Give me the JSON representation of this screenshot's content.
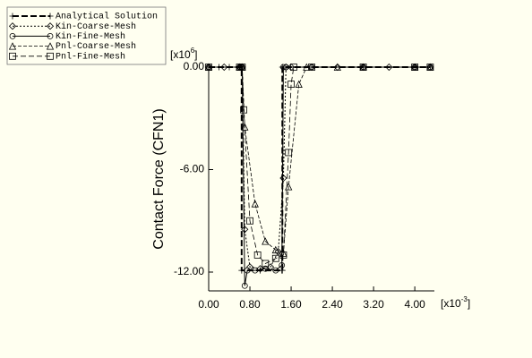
{
  "chart_data": {
    "type": "line",
    "y_label": "Contact Force (CFN1)",
    "y_multiplier": {
      "base": "[x10",
      "exponent": "6",
      "close": "]"
    },
    "x_multiplier": {
      "base": "[x10",
      "exponent": "-3",
      "close": "]"
    },
    "xlim": [
      0,
      4.38
    ],
    "ylim": [
      -13.1,
      0
    ],
    "xticks": [
      {
        "value": 0,
        "label": "0.00"
      },
      {
        "value": 0.8,
        "label": "0.80"
      },
      {
        "value": 1.6,
        "label": "1.60"
      },
      {
        "value": 2.4,
        "label": "2.40"
      },
      {
        "value": 3.2,
        "label": "3.20"
      },
      {
        "value": 4.0,
        "label": "4.00"
      }
    ],
    "yticks": [
      {
        "value": 0,
        "label": "0.00"
      },
      {
        "value": -6,
        "label": "-6.00"
      },
      {
        "value": -12,
        "label": "-12.00"
      }
    ],
    "legend": "top-left",
    "series": [
      {
        "name": "Analytical Solution",
        "color": "#000000",
        "dash": "7,3",
        "width": 2,
        "marker": "plus",
        "x": [
          0,
          0.2,
          0.4,
          0.6,
          0.64,
          0.64,
          1.0,
          1.42,
          1.43,
          1.43,
          2.0,
          3.0,
          4.0,
          4.3
        ],
        "values": [
          0,
          0,
          0,
          0,
          0,
          -11.9,
          -11.9,
          -11.9,
          -11.9,
          0,
          0,
          0,
          0,
          0
        ]
      },
      {
        "name": "Kin-Coarse-Mesh",
        "color": "#000000",
        "dash": "2,2",
        "width": 1,
        "marker": "diamond",
        "x": [
          0,
          0.3,
          0.6,
          0.65,
          0.7,
          0.8,
          1.0,
          1.2,
          1.35,
          1.45,
          1.5,
          1.6,
          2.0,
          2.5,
          3.0,
          3.5,
          4.0,
          4.3
        ],
        "values": [
          0,
          0,
          0,
          0,
          -9.5,
          -11.7,
          -11.8,
          -11.7,
          -10.8,
          -6.5,
          0,
          0,
          0,
          0,
          0,
          0,
          0,
          0
        ]
      },
      {
        "name": "Kin-Fine-Mesh",
        "color": "#000000",
        "dash": "",
        "width": 1,
        "marker": "circle",
        "x": [
          0,
          0.6,
          0.65,
          0.7,
          0.75,
          0.9,
          1.1,
          1.3,
          1.42,
          1.45,
          1.5,
          2.0,
          3.0,
          4.0,
          4.3
        ],
        "values": [
          0,
          0,
          0,
          -12.8,
          -11.9,
          -11.9,
          -11.8,
          -11.9,
          -11.6,
          0,
          0,
          0,
          0,
          0,
          0
        ]
      },
      {
        "name": "Pnl-Coarse-Mesh",
        "color": "#000000",
        "dash": "4,2",
        "width": 0.8,
        "marker": "triangle",
        "x": [
          0,
          0.6,
          0.65,
          0.7,
          0.9,
          1.1,
          1.3,
          1.45,
          1.55,
          1.75,
          1.9,
          2.5,
          3.0,
          4.0,
          4.3
        ],
        "values": [
          0,
          0,
          0,
          -3.5,
          -8,
          -10.2,
          -10.7,
          -10.9,
          -7,
          -1,
          0,
          0,
          0,
          0,
          0
        ]
      },
      {
        "name": "Pnl-Fine-Mesh",
        "color": "#000000",
        "dash": "6,3",
        "width": 0.8,
        "marker": "square",
        "x": [
          0,
          0.6,
          0.65,
          0.68,
          0.8,
          0.95,
          1.1,
          1.3,
          1.45,
          1.55,
          1.6,
          1.65,
          2.0,
          3.0,
          4.0,
          4.3
        ],
        "values": [
          0,
          0,
          0,
          -2.5,
          -9,
          -11,
          -11.5,
          -11.2,
          -11,
          -5,
          -1,
          0,
          0,
          0,
          0,
          0
        ]
      }
    ]
  }
}
